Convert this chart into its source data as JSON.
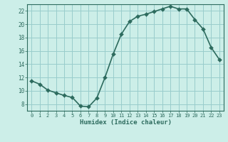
{
  "x": [
    0,
    1,
    2,
    3,
    4,
    5,
    6,
    7,
    8,
    9,
    10,
    11,
    12,
    13,
    14,
    15,
    16,
    17,
    18,
    19,
    20,
    21,
    22,
    23
  ],
  "y": [
    11.5,
    11.0,
    10.1,
    9.7,
    9.3,
    9.0,
    7.7,
    7.6,
    8.9,
    12.0,
    15.5,
    18.5,
    20.4,
    21.2,
    21.5,
    21.9,
    22.3,
    22.7,
    22.3,
    22.3,
    20.7,
    19.3,
    16.5,
    14.7
  ],
  "line_color": "#2d6b5e",
  "marker_color": "#2d6b5e",
  "bg_color": "#cceee8",
  "grid_color": "#99cccc",
  "xlabel": "Humidex (Indice chaleur)",
  "xlim": [
    -0.5,
    23.5
  ],
  "ylim": [
    7,
    23
  ],
  "yticks": [
    8,
    10,
    12,
    14,
    16,
    18,
    20,
    22
  ],
  "xticks": [
    0,
    1,
    2,
    3,
    4,
    5,
    6,
    7,
    8,
    9,
    10,
    11,
    12,
    13,
    14,
    15,
    16,
    17,
    18,
    19,
    20,
    21,
    22,
    23
  ],
  "marker_size": 3,
  "line_width": 1.2
}
